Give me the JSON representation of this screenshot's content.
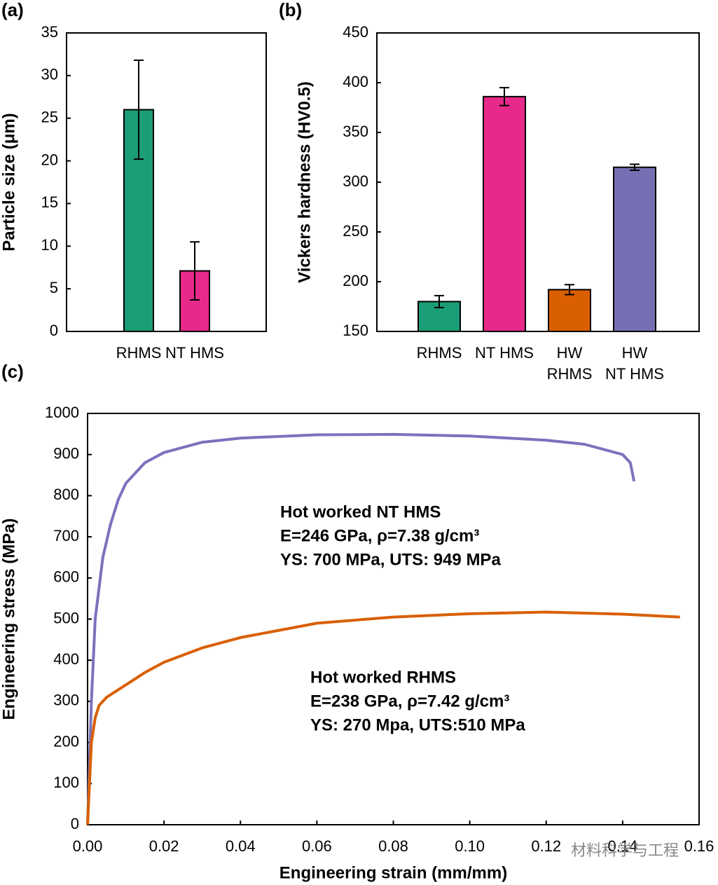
{
  "chart_data": [
    {
      "type": "bar",
      "label": "(a)",
      "ylabel": "Particle size (μm)",
      "categories": [
        "RHMS",
        "NT HMS"
      ],
      "values": [
        26,
        7.1
      ],
      "errors": [
        5.8,
        3.4
      ],
      "colors": [
        "#1b9e77",
        "#e7298a"
      ],
      "ylim": [
        0,
        35
      ],
      "yticks": [
        0,
        5,
        10,
        15,
        20,
        25,
        30,
        35
      ]
    },
    {
      "type": "bar",
      "label": "(b)",
      "ylabel": "Vickers hardness (HV0.5)",
      "categories": [
        "RHMS",
        "NT HMS",
        "HW\nRHMS",
        "HW\nNT HMS"
      ],
      "values": [
        180,
        386,
        192,
        315
      ],
      "errors": [
        6,
        9,
        5,
        3
      ],
      "colors": [
        "#1b9e77",
        "#e7298a",
        "#d95f02",
        "#7570b3"
      ],
      "ylim": [
        150,
        450
      ],
      "yticks": [
        150,
        200,
        250,
        300,
        350,
        400,
        450
      ]
    },
    {
      "type": "line",
      "label": "(c)",
      "xlabel": "Engineering strain (mm/mm)",
      "ylabel": "Engineering stress (MPa)",
      "watermark": "材料科学与工程",
      "series": [
        {
          "name": "Hot worked NT HMS",
          "color": "#7b72bd",
          "annotations": [
            "E=246 GPa, ρ=7.38 g/cm³",
            "YS: 700 MPa, UTS: 949 MPa"
          ],
          "x": [
            0,
            0.001,
            0.002,
            0.004,
            0.006,
            0.008,
            0.01,
            0.015,
            0.02,
            0.03,
            0.04,
            0.06,
            0.08,
            0.1,
            0.12,
            0.13,
            0.14,
            0.142,
            0.143
          ],
          "values": [
            0,
            300,
            500,
            650,
            730,
            790,
            830,
            880,
            905,
            930,
            940,
            948,
            949,
            945,
            935,
            925,
            900,
            880,
            835
          ]
        },
        {
          "name": "Hot worked RHMS",
          "color": "#d95f02",
          "annotations": [
            "E=238 GPa, ρ=7.42 g/cm³",
            "YS: 270 Mpa, UTS:510 MPa"
          ],
          "x": [
            0,
            0.001,
            0.002,
            0.003,
            0.005,
            0.01,
            0.015,
            0.02,
            0.03,
            0.04,
            0.06,
            0.08,
            0.1,
            0.12,
            0.14,
            0.155
          ],
          "values": [
            0,
            200,
            260,
            290,
            310,
            340,
            370,
            395,
            430,
            455,
            490,
            505,
            513,
            517,
            512,
            505
          ]
        }
      ],
      "xlim": [
        0,
        0.16
      ],
      "xticks": [
        {
          "value": 0,
          "label": "0.00"
        },
        {
          "value": 0.02,
          "label": "0.02"
        },
        {
          "value": 0.04,
          "label": "0.04"
        },
        {
          "value": 0.06,
          "label": "0.06"
        },
        {
          "value": 0.08,
          "label": "0.08"
        },
        {
          "value": 0.1,
          "label": "0.10"
        },
        {
          "value": 0.12,
          "label": "0.12"
        },
        {
          "value": 0.14,
          "label": "0.14"
        },
        {
          "value": 0.16,
          "label": "0.16"
        }
      ],
      "ylim": [
        0,
        1000
      ],
      "yticks": [
        0,
        100,
        200,
        300,
        400,
        500,
        600,
        700,
        800,
        900,
        1000
      ]
    }
  ]
}
